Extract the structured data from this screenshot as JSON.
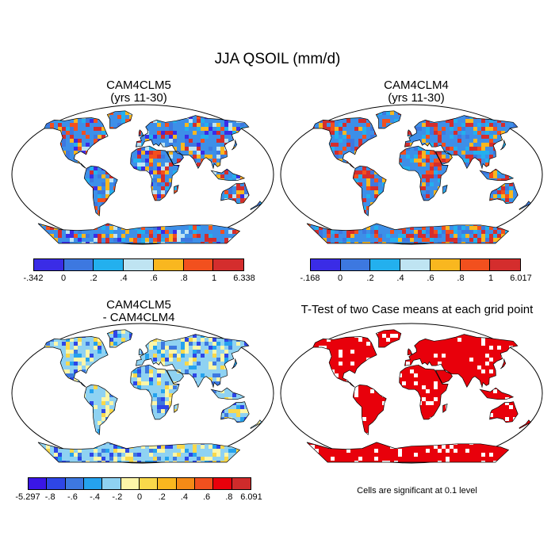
{
  "main_title": "JJA QSOIL (mm/d)",
  "panels": [
    {
      "id": "p1",
      "title": "CAM4CLM5\n(yrs 11-30)",
      "fill": "#3d8fe8",
      "tone": "mixed_warm"
    },
    {
      "id": "p2",
      "title": "CAM4CLM4\n(yrs 11-30)",
      "fill": "#3d8fe8",
      "tone": "hot"
    },
    {
      "id": "p3",
      "title": "CAM4CLM5\n - CAM4CLM4",
      "fill": "#8fd2f2",
      "tone": "diff"
    },
    {
      "id": "p4",
      "title": "T-Test of two Case means at each grid point",
      "fill": "#e8000b",
      "tone": "ttest"
    }
  ],
  "colorbars": [
    {
      "id": "cb1",
      "colors": [
        "#3a2ce6",
        "#3d78e0",
        "#23b0ee",
        "#bfe4f2",
        "#f9b71f",
        "#f2501e",
        "#d42d2d"
      ],
      "labels": [
        "-.342",
        "0",
        ".2",
        ".4",
        ".6",
        ".8",
        "1",
        "6.338"
      ]
    },
    {
      "id": "cb2",
      "colors": [
        "#3a2ce6",
        "#3d78e0",
        "#23b0ee",
        "#bfe4f2",
        "#f9b71f",
        "#f2501e",
        "#d42d2d"
      ],
      "labels": [
        "-.168",
        "0",
        ".2",
        ".4",
        ".6",
        ".8",
        "1",
        "6.017"
      ]
    },
    {
      "id": "cb3",
      "colors": [
        "#3a16e6",
        "#2e46e6",
        "#3d78e0",
        "#25a2ee",
        "#8fd2f2",
        "#fdf6a8",
        "#f9d84a",
        "#f9b71f",
        "#f58a16",
        "#f2501e",
        "#e8000b",
        "#cf2b2b"
      ],
      "labels": [
        "-5.297",
        "-.8",
        "-.6",
        "-.4",
        "-.2",
        "0",
        ".2",
        ".4",
        ".6",
        ".8",
        "6.091"
      ]
    }
  ],
  "ttest_note": "Cells are significant at 0.1 level"
}
